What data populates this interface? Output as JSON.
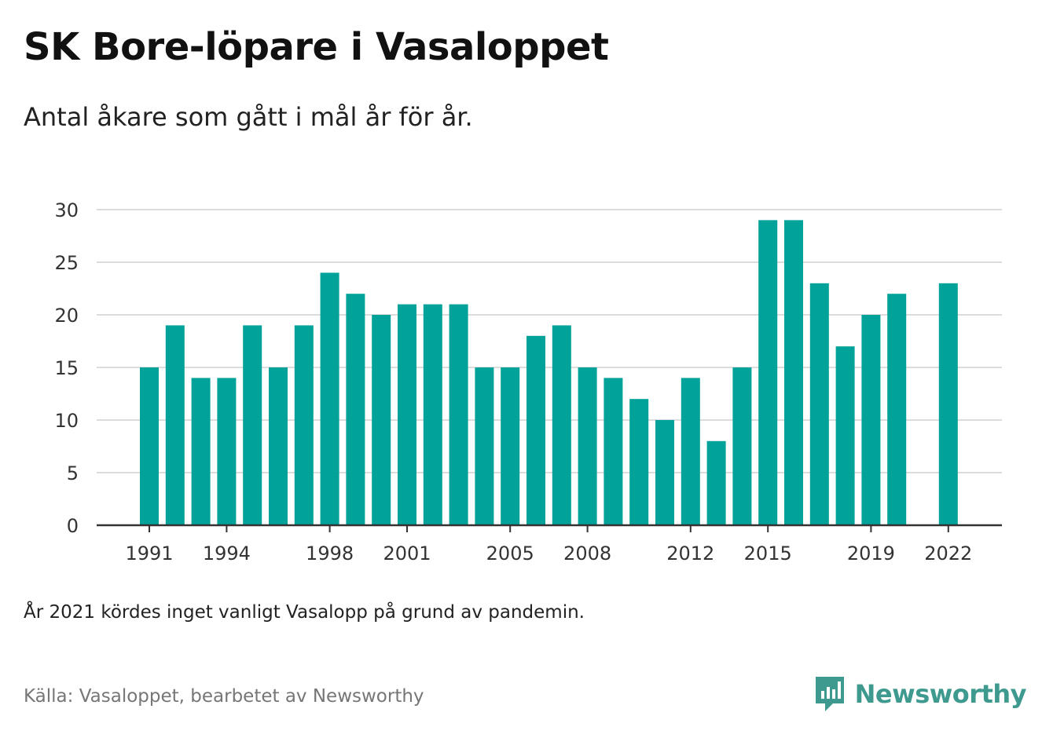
{
  "header": {
    "title": "SK Bore-löpare i Vasaloppet",
    "subtitle": "Antal åkare som gått i mål år för år."
  },
  "footer": {
    "note": "År 2021 kördes inget vanligt Vasalopp på grund av pandemin.",
    "source": "Källa: Vasaloppet, bearbetet av Newsworthy",
    "brand": "Newsworthy"
  },
  "colors": {
    "bar": "#00a29a",
    "grid": "#dcdcdc",
    "axis": "#333333",
    "brand": "#3e9a8f"
  },
  "chart_data": {
    "type": "bar",
    "categories": [
      "1991",
      "1992",
      "1993",
      "1994",
      "1995",
      "1996",
      "1997",
      "1998",
      "1999",
      "2000",
      "2001",
      "2002",
      "2003",
      "2004",
      "2005",
      "2006",
      "2007",
      "2008",
      "2009",
      "2010",
      "2011",
      "2012",
      "2013",
      "2014",
      "2015",
      "2016",
      "2017",
      "2018",
      "2019",
      "2020",
      "2021",
      "2022"
    ],
    "values": [
      15,
      19,
      14,
      14,
      19,
      15,
      19,
      24,
      22,
      20,
      21,
      21,
      21,
      15,
      15,
      18,
      19,
      15,
      14,
      12,
      10,
      14,
      8,
      15,
      29,
      29,
      23,
      17,
      20,
      22,
      null,
      23
    ],
    "x_tick_labels": [
      "1991",
      "1994",
      "1998",
      "2001",
      "2005",
      "2008",
      "2012",
      "2015",
      "2019",
      "2022"
    ],
    "y_ticks": [
      0,
      5,
      10,
      15,
      20,
      25,
      30
    ],
    "ylim": [
      0,
      30
    ],
    "grid": true
  }
}
